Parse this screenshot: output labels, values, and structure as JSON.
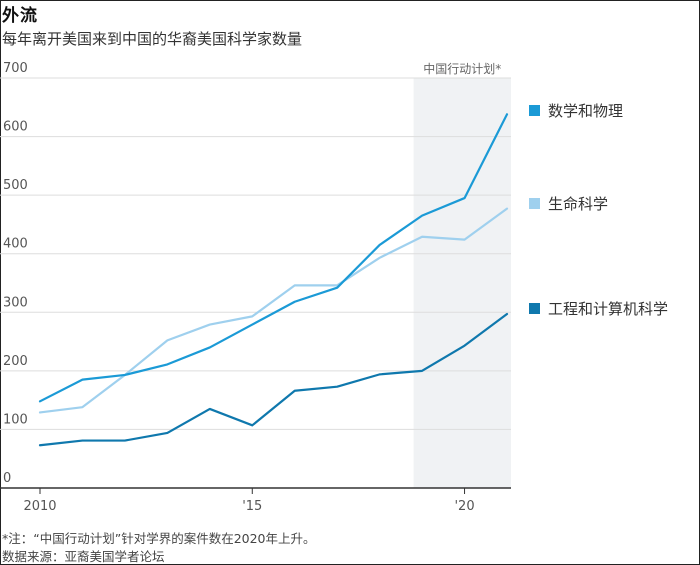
{
  "header": {
    "title": "外流",
    "subtitle": "每年离开美国来到中国的华裔美国科学家数量"
  },
  "footer": {
    "note": "*注：“中国行动计划”针对学界的案件数在2020年上升。",
    "source": "数据来源：亚裔美国学者论坛"
  },
  "colors": {
    "math_physics": "#1b9ad6",
    "life_science": "#9fd0ee",
    "engineering": "#0f78ad",
    "shade": "#f0f2f4",
    "grid": "#dddddd",
    "axis": "#333333"
  },
  "chart_data": {
    "type": "line",
    "xlim": [
      2010,
      2021.6
    ],
    "ylim": [
      0,
      700
    ],
    "y_ticks": [
      0,
      100,
      200,
      300,
      400,
      500,
      600,
      700
    ],
    "x_ticks": [
      {
        "value": 2010,
        "label": "2010"
      },
      {
        "value": 2015,
        "label": "'15"
      },
      {
        "value": 2020,
        "label": "'20"
      }
    ],
    "grid": "horizontal",
    "shaded_region": {
      "start": 2018.8,
      "end": 2021.6,
      "label": "中国行动计划*"
    },
    "x": [
      2010,
      2011,
      2012,
      2013,
      2014,
      2015,
      2016,
      2017,
      2018,
      2019,
      2020,
      2021
    ],
    "series": [
      {
        "name": "数学和物理",
        "color_key": "math_physics",
        "values": [
          148,
          185,
          193,
          211,
          240,
          279,
          318,
          342,
          415,
          465,
          495,
          638
        ]
      },
      {
        "name": "生命科学",
        "color_key": "life_science",
        "values": [
          129,
          138,
          193,
          252,
          279,
          293,
          346,
          346,
          393,
          429,
          424,
          477
        ]
      },
      {
        "name": "工程和计算机科学",
        "color_key": "engineering",
        "values": [
          73,
          81,
          81,
          94,
          135,
          107,
          166,
          173,
          194,
          200,
          243,
          297
        ]
      }
    ]
  }
}
